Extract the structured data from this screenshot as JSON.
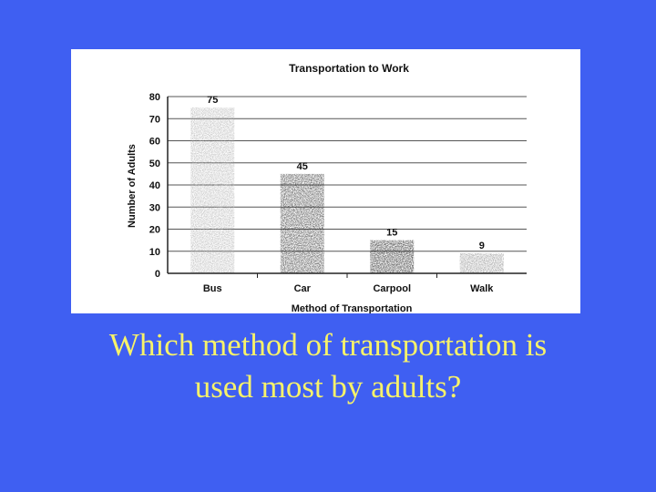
{
  "slide": {
    "background_color": "#3f5ff2",
    "question_lines": [
      "Which method of transportation is",
      "used most by adults?"
    ],
    "question_color": "#f7f26a"
  },
  "chart_data": {
    "type": "bar",
    "title": "Transportation to Work",
    "xlabel": "Method of Transportation",
    "ylabel": "Number of Adults",
    "categories": [
      "Bus",
      "Car",
      "Carpool",
      "Walk"
    ],
    "values": [
      75,
      45,
      15,
      9
    ],
    "ylim": [
      0,
      80
    ],
    "yticks": [
      0,
      10,
      20,
      30,
      40,
      50,
      60,
      70,
      80
    ],
    "grid": true,
    "legend": "none",
    "bar_colors": [
      "#b3b3b3",
      "#2f2f2f",
      "#111111",
      "#8a8a8a"
    ]
  }
}
